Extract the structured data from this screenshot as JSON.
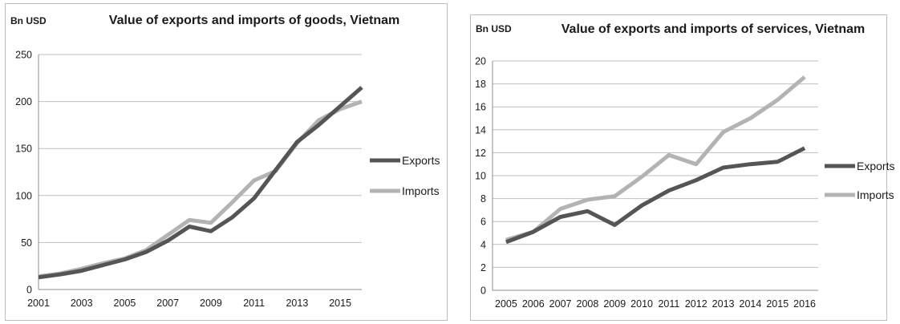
{
  "chart_data": [
    {
      "type": "line",
      "title": "Value of exports and imports of goods, Vietnam",
      "unit_label": "Bn USD",
      "x": [
        2001,
        2002,
        2003,
        2004,
        2005,
        2006,
        2007,
        2008,
        2009,
        2010,
        2011,
        2012,
        2013,
        2014,
        2015,
        2016
      ],
      "x_tick_labels": [
        "2001",
        "2003",
        "2005",
        "2007",
        "2009",
        "2011",
        "2013",
        "2015"
      ],
      "y_ticks": [
        "0",
        "50",
        "100",
        "150",
        "200",
        "250"
      ],
      "ylim": [
        0,
        250
      ],
      "grid": true,
      "legend_position": "right",
      "series": [
        {
          "name": "Exports",
          "color": "#555555",
          "values": [
            13,
            16,
            20,
            26,
            32,
            40,
            52,
            67,
            62,
            77,
            97,
            127,
            157,
            175,
            195,
            215
          ]
        },
        {
          "name": "Imports",
          "color": "#b3b3b3",
          "values": [
            14,
            17,
            22,
            28,
            33,
            42,
            58,
            74,
            71,
            93,
            116,
            126,
            156,
            180,
            192,
            200
          ]
        }
      ]
    },
    {
      "type": "line",
      "title": "Value of exports and imports of services, Vietnam",
      "unit_label": "Bn USD",
      "x": [
        2005,
        2006,
        2007,
        2008,
        2009,
        2010,
        2011,
        2012,
        2013,
        2014,
        2015,
        2016
      ],
      "x_tick_labels": [
        "2005",
        "2006",
        "2007",
        "2008",
        "2009",
        "2010",
        "2011",
        "2012",
        "2013",
        "2014",
        "2015",
        "2016"
      ],
      "y_ticks": [
        "0",
        "2",
        "4",
        "6",
        "8",
        "10",
        "12",
        "14",
        "16",
        "18",
        "20"
      ],
      "ylim": [
        0,
        20
      ],
      "grid": true,
      "legend_position": "right",
      "series": [
        {
          "name": "Exports",
          "color": "#555555",
          "values": [
            4.2,
            5.1,
            6.4,
            6.9,
            5.7,
            7.4,
            8.7,
            9.6,
            10.7,
            11.0,
            11.2,
            12.4
          ]
        },
        {
          "name": "Imports",
          "color": "#b3b3b3",
          "values": [
            4.4,
            5.1,
            7.1,
            7.9,
            8.2,
            9.9,
            11.8,
            11.0,
            13.8,
            15.0,
            16.6,
            18.6
          ]
        }
      ]
    }
  ]
}
